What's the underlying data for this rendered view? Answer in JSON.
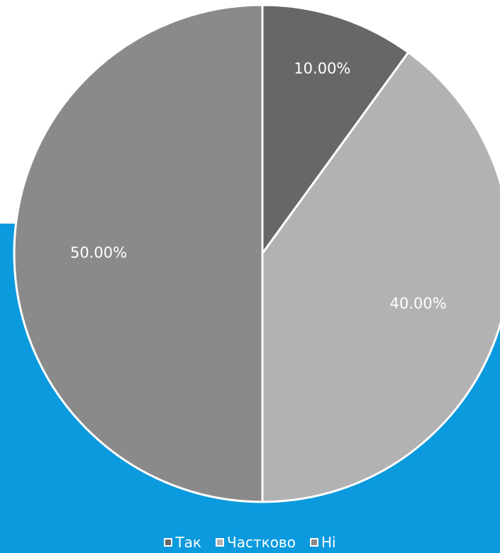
{
  "chart_data": {
    "type": "pie",
    "title": "",
    "slices": [
      {
        "name": "Так",
        "value": 10.0,
        "label": "10.00%",
        "color": "#676767"
      },
      {
        "name": "Частково",
        "value": 40.0,
        "label": "40.00%",
        "color": "#b2b2b2"
      },
      {
        "name": "Ні",
        "value": 50.0,
        "label": "50.00%",
        "color": "#8a8a8a"
      }
    ],
    "start_angle_deg": 0,
    "direction": "clockwise",
    "legend_position": "bottom"
  },
  "colors": {
    "background_accent": "#0b9ade",
    "slice_border": "#ffffff",
    "label_text": "#ffffff"
  }
}
